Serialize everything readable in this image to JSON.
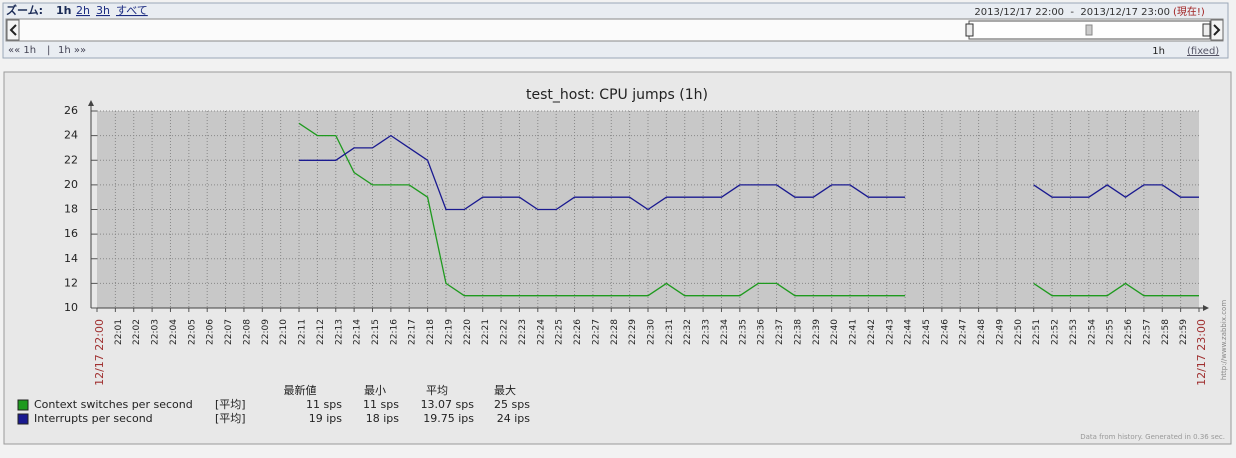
{
  "controls": {
    "zoom_label": "ズーム:",
    "zoom_options": [
      "1h",
      "2h",
      "3h",
      "すべて"
    ],
    "period": "2013/12/17 22:00  -  2013/12/17 23:00",
    "now": "(現在!)",
    "nav_back": "«« 1h",
    "nav_sep": "|",
    "nav_fwd": "1h »»",
    "period_len": "1h",
    "fixed": "(fixed)"
  },
  "chart_data": {
    "type": "line",
    "title": "test_host: CPU jumps (1h)",
    "x": [
      "12/17 22:00",
      "22:01",
      "22:02",
      "22:03",
      "22:04",
      "22:05",
      "22:06",
      "22:07",
      "22:08",
      "22:09",
      "22:10",
      "22:11",
      "22:12",
      "22:13",
      "22:14",
      "22:15",
      "22:16",
      "22:17",
      "22:18",
      "22:19",
      "22:20",
      "22:21",
      "22:22",
      "22:23",
      "22:24",
      "22:25",
      "22:26",
      "22:27",
      "22:28",
      "22:29",
      "22:30",
      "22:31",
      "22:32",
      "22:33",
      "22:34",
      "22:35",
      "22:36",
      "22:37",
      "22:38",
      "22:39",
      "22:40",
      "22:41",
      "22:42",
      "22:43",
      "22:44",
      "22:45",
      "22:46",
      "22:47",
      "22:48",
      "22:49",
      "22:50",
      "22:51",
      "22:52",
      "22:53",
      "22:54",
      "22:55",
      "22:56",
      "22:57",
      "22:58",
      "22:59",
      "12/17 23:00"
    ],
    "series": [
      {
        "name": "Context switches per second",
        "color": "#1f9a1f",
        "values": [
          null,
          null,
          null,
          null,
          null,
          null,
          null,
          null,
          null,
          null,
          null,
          25,
          24,
          24,
          21,
          20,
          20,
          20,
          19,
          12,
          11,
          11,
          11,
          11,
          11,
          11,
          11,
          11,
          11,
          11,
          11,
          12,
          11,
          11,
          11,
          11,
          12,
          12,
          11,
          11,
          11,
          11,
          11,
          11,
          11,
          null,
          null,
          null,
          null,
          null,
          null,
          12,
          11,
          11,
          11,
          11,
          12,
          11,
          11,
          11,
          11
        ]
      },
      {
        "name": "Interrupts per second",
        "color": "#1a1a90",
        "values": [
          null,
          null,
          null,
          null,
          null,
          null,
          null,
          null,
          null,
          null,
          null,
          22,
          22,
          22,
          23,
          23,
          24,
          23,
          22,
          18,
          18,
          19,
          19,
          19,
          18,
          18,
          19,
          19,
          19,
          19,
          18,
          19,
          19,
          19,
          19,
          20,
          20,
          20,
          19,
          19,
          20,
          20,
          19,
          19,
          19,
          null,
          null,
          null,
          null,
          null,
          null,
          20,
          19,
          19,
          19,
          20,
          19,
          20,
          20,
          19,
          19
        ]
      }
    ],
    "ylim": [
      10,
      26
    ],
    "yticks": [
      10,
      12,
      14,
      16,
      18,
      20,
      22,
      24,
      26
    ],
    "grid": true,
    "legend": {
      "headers": [
        "最新値",
        "最小",
        "平均",
        "最大"
      ],
      "stats": [
        [
          "[平均]",
          "11 sps",
          "11 sps",
          "13.07 sps",
          "25 sps"
        ],
        [
          "[平均]",
          "19 ips",
          "18 ips",
          "19.75 ips",
          "24 ips"
        ]
      ]
    },
    "watermark": "http://www.zabbix.com",
    "footer": "Data from history. Generated in 0.36 sec."
  }
}
